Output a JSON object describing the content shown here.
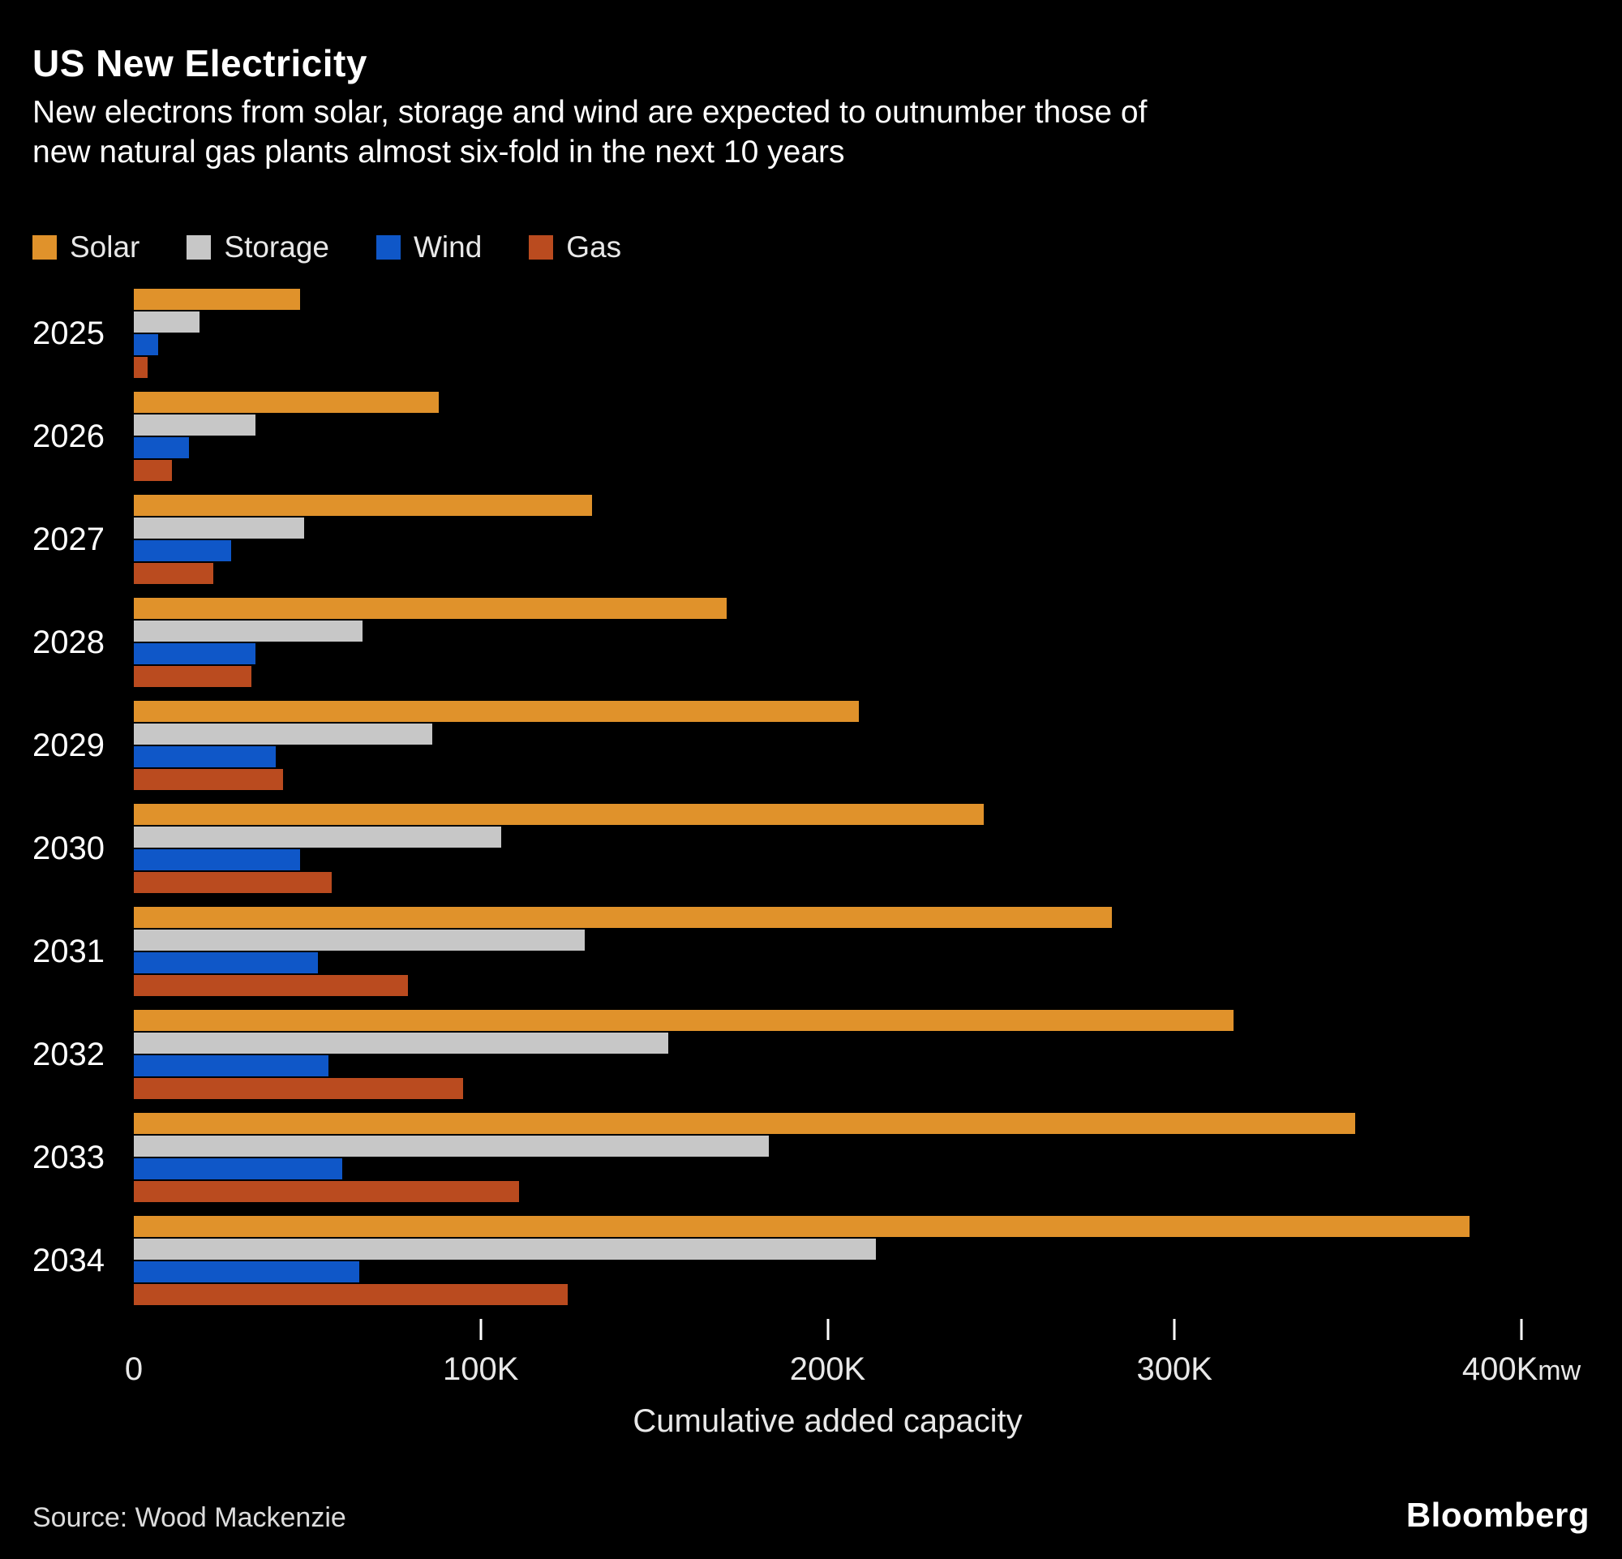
{
  "header": {
    "title": "US New Electricity",
    "subtitle_line1": "New electrons from solar, storage and wind are expected to outnumber those of",
    "subtitle_line2": "new natural gas plants almost six-fold in the next 10 years"
  },
  "legend": [
    {
      "label": "Solar",
      "color": "#E0922B"
    },
    {
      "label": "Storage",
      "color": "#C7C7C7"
    },
    {
      "label": "Wind",
      "color": "#0F57C8"
    },
    {
      "label": "Gas",
      "color": "#BA4B1F"
    }
  ],
  "chart_data": {
    "type": "bar",
    "orientation": "horizontal",
    "title": "US New Electricity",
    "categories": [
      "2025",
      "2026",
      "2027",
      "2028",
      "2029",
      "2030",
      "2031",
      "2032",
      "2033",
      "2034"
    ],
    "series": [
      {
        "name": "Solar",
        "color": "#E0922B",
        "values": [
          48,
          88,
          132,
          171,
          209,
          245,
          282,
          317,
          352,
          385
        ]
      },
      {
        "name": "Storage",
        "color": "#C7C7C7",
        "values": [
          19,
          35,
          49,
          66,
          86,
          106,
          130,
          154,
          183,
          214
        ]
      },
      {
        "name": "Wind",
        "color": "#0F57C8",
        "values": [
          7,
          16,
          28,
          35,
          41,
          48,
          53,
          56,
          60,
          65
        ]
      },
      {
        "name": "Gas",
        "color": "#BA4B1F",
        "values": [
          4,
          11,
          23,
          34,
          43,
          57,
          79,
          95,
          111,
          125
        ]
      }
    ],
    "values_unit": "thousand megawatts (K mw)",
    "x_axis": {
      "label": "Cumulative added capacity",
      "ticks": [
        "0",
        "100K",
        "200K",
        "300K",
        "400K"
      ],
      "unit_suffix": "mw",
      "min": 0,
      "max": 400,
      "grid": false
    },
    "legend_position": "top"
  },
  "footer": {
    "source": "Source: Wood Mackenzie",
    "brand": "Bloomberg"
  }
}
